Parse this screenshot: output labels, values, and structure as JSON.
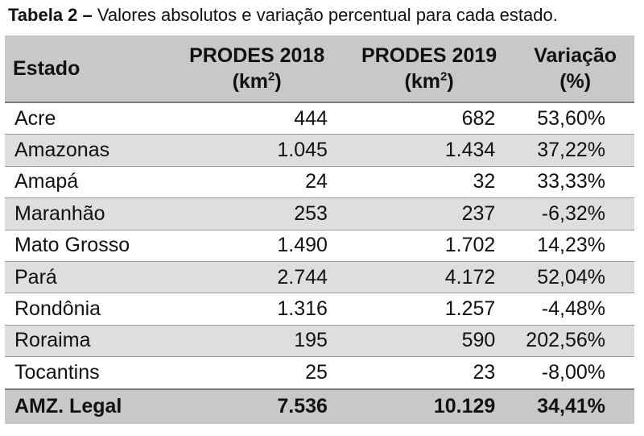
{
  "caption": {
    "label": "Tabela 2",
    "sep": " – ",
    "text": "Valores absolutos e variação percentual para cada estado."
  },
  "table": {
    "headers": [
      {
        "line1": "Estado",
        "line2": "",
        "sup": ""
      },
      {
        "line1": "PRODES 2018",
        "line2": "(km",
        "sup": "2",
        "close": ")"
      },
      {
        "line1": "PRODES 2019",
        "line2": "(km",
        "sup": "2",
        "close": ")"
      },
      {
        "line1": "Variação (%)",
        "line2": "",
        "sup": ""
      }
    ],
    "rows": [
      [
        "Acre",
        "444",
        "682",
        "53,60%"
      ],
      [
        "Amazonas",
        "1.045",
        "1.434",
        "37,22%"
      ],
      [
        "Amapá",
        "24",
        "32",
        "33,33%"
      ],
      [
        "Maranhão",
        "253",
        "237",
        "-6,32%"
      ],
      [
        "Mato Grosso",
        "1.490",
        "1.702",
        "14,23%"
      ],
      [
        "Pará",
        "2.744",
        "4.172",
        "52,04%"
      ],
      [
        "Rondônia",
        "1.316",
        "1.257",
        "-4,48%"
      ],
      [
        "Roraima",
        "195",
        "590",
        "202,56%"
      ],
      [
        "Tocantins",
        "25",
        "23",
        "-8,00%"
      ]
    ],
    "total": [
      "AMZ. Legal",
      "7.536",
      "10.129",
      "34,41%"
    ]
  }
}
